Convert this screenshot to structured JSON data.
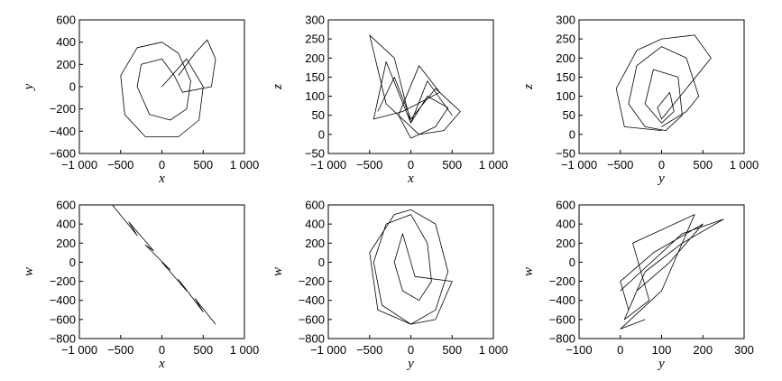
{
  "chart_data": [
    {
      "type": "line",
      "xlabel": "x",
      "ylabel": "y",
      "xlim": [
        -1000,
        1000
      ],
      "xticks": [
        {
          "value": -1000,
          "label": "−1 000"
        },
        {
          "value": -500,
          "label": "−500"
        },
        0,
        500,
        {
          "value": 1000,
          "label": "1 000"
        }
      ],
      "ylim": [
        -600,
        600
      ],
      "yticks": [
        {
          "value": -600,
          "label": "−600"
        },
        {
          "value": -400,
          "label": "−400"
        },
        {
          "value": -200,
          "label": "−200"
        },
        0,
        200,
        400,
        600
      ],
      "series": [
        {
          "color": "#000000",
          "x": [
            0,
            300,
            500,
            450,
            200,
            -200,
            -450,
            -500,
            -300,
            0,
            200,
            350,
            300,
            100,
            -150,
            -300,
            -250,
            0,
            150,
            250,
            600,
            650,
            550,
            400,
            200
          ],
          "values": [
            0,
            250,
            0,
            -300,
            -450,
            -450,
            -250,
            100,
            350,
            400,
            300,
            50,
            -200,
            -300,
            -250,
            0,
            200,
            250,
            100,
            -50,
            0,
            250,
            420,
            300,
            100
          ]
        }
      ]
    },
    {
      "type": "line",
      "xlabel": "x",
      "ylabel": "z",
      "xlim": [
        -1000,
        1000
      ],
      "xticks": [
        {
          "value": -1000,
          "label": "−1 000"
        },
        {
          "value": -500,
          "label": "−500"
        },
        0,
        500,
        {
          "value": 1000,
          "label": "1 000"
        }
      ],
      "ylim": [
        -50,
        300
      ],
      "yticks": [
        {
          "value": -50,
          "label": "−50"
        },
        0,
        50,
        100,
        150,
        200,
        250,
        300
      ],
      "series": [
        {
          "color": "#000000",
          "x": [
            -400,
            -200,
            0,
            300,
            600,
            400,
            100,
            -300,
            -500,
            -200,
            0,
            200,
            450,
            300,
            0,
            -150,
            100,
            350,
            -100,
            -450,
            -300,
            0,
            200,
            500
          ],
          "values": [
            60,
            150,
            40,
            120,
            60,
            10,
            0,
            80,
            260,
            200,
            30,
            100,
            70,
            20,
            -10,
            50,
            180,
            110,
            60,
            40,
            190,
            30,
            140,
            50
          ]
        }
      ]
    },
    {
      "type": "line",
      "xlabel": "y",
      "ylabel": "z",
      "xlim": [
        -1000,
        1000
      ],
      "xticks": [
        {
          "value": -1000,
          "label": "−1 000"
        },
        {
          "value": -500,
          "label": "−500"
        },
        0,
        500,
        {
          "value": 1000,
          "label": "1 000"
        }
      ],
      "ylim": [
        -50,
        300
      ],
      "yticks": [
        {
          "value": -50,
          "label": "−50"
        },
        0,
        50,
        100,
        150,
        200,
        250,
        300
      ],
      "series": [
        {
          "color": "#000000",
          "x": [
            0,
            300,
            450,
            300,
            0,
            -300,
            -400,
            -200,
            50,
            250,
            200,
            -100,
            -200,
            0,
            150,
            100,
            -50,
            0,
            600,
            400,
            0,
            -300,
            -550,
            -450,
            0
          ],
          "values": [
            20,
            60,
            100,
            200,
            230,
            180,
            80,
            20,
            10,
            50,
            150,
            170,
            80,
            30,
            60,
            110,
            70,
            40,
            200,
            260,
            250,
            220,
            120,
            20,
            10
          ]
        }
      ]
    },
    {
      "type": "line",
      "xlabel": "x",
      "ylabel": "w",
      "xlim": [
        -1000,
        1000
      ],
      "xticks": [
        {
          "value": -1000,
          "label": "−1 000"
        },
        {
          "value": -500,
          "label": "−500"
        },
        0,
        500,
        {
          "value": 1000,
          "label": "1 000"
        }
      ],
      "ylim": [
        -800,
        600
      ],
      "yticks": [
        {
          "value": -800,
          "label": "−800"
        },
        {
          "value": -600,
          "label": "−600"
        },
        {
          "value": -400,
          "label": "−400"
        },
        {
          "value": -200,
          "label": "−200"
        },
        0,
        200,
        400,
        600
      ],
      "series": [
        {
          "color": "#000000",
          "x": [
            -600,
            -300,
            -400,
            -100,
            -200,
            100,
            0,
            300,
            200,
            500,
            400,
            650
          ],
          "values": [
            600,
            280,
            420,
            120,
            180,
            -80,
            0,
            -300,
            -180,
            -520,
            -380,
            -650
          ]
        }
      ]
    },
    {
      "type": "line",
      "xlabel": "y",
      "ylabel": "w",
      "xlim": [
        -1000,
        1000
      ],
      "xticks": [
        {
          "value": -1000,
          "label": "−1 000"
        },
        {
          "value": -500,
          "label": "−500"
        },
        0,
        500,
        {
          "value": 1000,
          "label": "1 000"
        }
      ],
      "ylim": [
        -800,
        600
      ],
      "yticks": [
        {
          "value": -800,
          "label": "−800"
        },
        {
          "value": -600,
          "label": "−600"
        },
        {
          "value": -400,
          "label": "−400"
        },
        {
          "value": -200,
          "label": "−200"
        },
        0,
        200,
        400,
        600
      ],
      "series": [
        {
          "color": "#000000",
          "x": [
            0,
            300,
            450,
            300,
            0,
            -350,
            -450,
            -300,
            0,
            200,
            250,
            100,
            -100,
            -200,
            -100,
            50,
            500,
            300,
            0,
            -400,
            -500,
            -200,
            0
          ],
          "values": [
            550,
            400,
            -100,
            -500,
            -650,
            -450,
            0,
            400,
            500,
            200,
            -200,
            -400,
            -300,
            0,
            300,
            -150,
            -200,
            -600,
            -650,
            -500,
            100,
            500,
            550
          ]
        }
      ]
    },
    {
      "type": "line",
      "xlabel": "y",
      "ylabel": "w",
      "xlim": [
        -100,
        300
      ],
      "xticks": [
        {
          "value": -100,
          "label": "−100"
        },
        0,
        100,
        200,
        300
      ],
      "ylim": [
        -800,
        600
      ],
      "yticks": [
        {
          "value": -800,
          "label": "−800"
        },
        {
          "value": -600,
          "label": "−600"
        },
        {
          "value": -400,
          "label": "−400"
        },
        {
          "value": -200,
          "label": "−200"
        },
        0,
        200,
        400,
        600
      ],
      "series": [
        {
          "color": "#000000",
          "x": [
            0,
            50,
            100,
            150,
            250,
            150,
            60,
            20,
            0,
            80,
            200,
            120,
            40,
            10,
            70,
            30,
            180,
            100,
            0,
            60
          ],
          "values": [
            -300,
            -100,
            100,
            300,
            450,
            200,
            -100,
            -500,
            -200,
            100,
            400,
            0,
            -300,
            -600,
            -400,
            200,
            500,
            -300,
            -700,
            -600
          ]
        }
      ]
    }
  ]
}
